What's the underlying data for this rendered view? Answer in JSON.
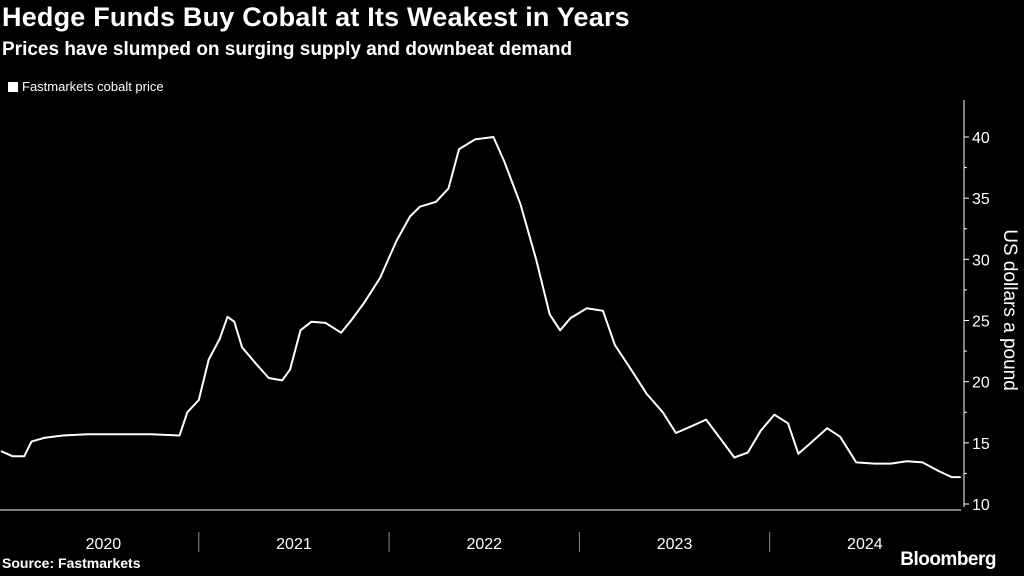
{
  "chart_data": {
    "type": "line",
    "title": "Hedge Funds Buy Cobalt at Its Weakest in Years",
    "subtitle": "Prices have slumped on surging supply and downbeat demand",
    "ylabel": "US dollars a pound",
    "xlabel": "",
    "ylim": [
      10,
      42
    ],
    "yticks": [
      10,
      15,
      20,
      25,
      30,
      35,
      40
    ],
    "xlim": [
      "2020-01-01",
      "2024-12-31"
    ],
    "year_labels": [
      "2020",
      "2021",
      "2022",
      "2023",
      "2024"
    ],
    "legend": "top-left",
    "grid": false,
    "series": [
      {
        "name": "Fastmarkets cobalt price",
        "color": "#ffffff",
        "points": [
          [
            "2019-12-20",
            14.3
          ],
          [
            "2020-01-10",
            13.9
          ],
          [
            "2020-02-01",
            13.9
          ],
          [
            "2020-02-15",
            15.1
          ],
          [
            "2020-03-10",
            15.4
          ],
          [
            "2020-04-15",
            15.6
          ],
          [
            "2020-06-01",
            15.7
          ],
          [
            "2020-08-01",
            15.7
          ],
          [
            "2020-10-01",
            15.7
          ],
          [
            "2020-11-25",
            15.6
          ],
          [
            "2020-12-10",
            17.5
          ],
          [
            "2021-01-01",
            18.5
          ],
          [
            "2021-01-20",
            21.8
          ],
          [
            "2021-02-10",
            23.5
          ],
          [
            "2021-02-25",
            25.3
          ],
          [
            "2021-03-10",
            24.9
          ],
          [
            "2021-03-25",
            22.8
          ],
          [
            "2021-04-20",
            21.5
          ],
          [
            "2021-05-15",
            20.3
          ],
          [
            "2021-06-10",
            20.1
          ],
          [
            "2021-06-25",
            21.0
          ],
          [
            "2021-07-15",
            24.2
          ],
          [
            "2021-08-05",
            24.9
          ],
          [
            "2021-09-01",
            24.8
          ],
          [
            "2021-10-01",
            24.0
          ],
          [
            "2021-10-20",
            25.0
          ],
          [
            "2021-11-15",
            26.5
          ],
          [
            "2021-12-15",
            28.5
          ],
          [
            "2022-01-15",
            31.5
          ],
          [
            "2022-02-10",
            33.5
          ],
          [
            "2022-03-01",
            34.3
          ],
          [
            "2022-04-01",
            34.7
          ],
          [
            "2022-04-25",
            35.8
          ],
          [
            "2022-05-15",
            39.0
          ],
          [
            "2022-06-15",
            39.8
          ],
          [
            "2022-07-20",
            40.0
          ],
          [
            "2022-08-10",
            38.0
          ],
          [
            "2022-09-10",
            34.5
          ],
          [
            "2022-10-10",
            30.0
          ],
          [
            "2022-11-05",
            25.5
          ],
          [
            "2022-11-25",
            24.2
          ],
          [
            "2022-12-15",
            25.2
          ],
          [
            "2023-01-15",
            26.0
          ],
          [
            "2023-02-15",
            25.8
          ],
          [
            "2023-03-10",
            23.0
          ],
          [
            "2023-04-10",
            21.0
          ],
          [
            "2023-05-10",
            19.0
          ],
          [
            "2023-06-10",
            17.5
          ],
          [
            "2023-07-05",
            15.8
          ],
          [
            "2023-08-01",
            16.3
          ],
          [
            "2023-09-01",
            16.9
          ],
          [
            "2023-10-01",
            15.2
          ],
          [
            "2023-10-25",
            13.8
          ],
          [
            "2023-11-20",
            14.2
          ],
          [
            "2023-12-15",
            16.0
          ],
          [
            "2024-01-10",
            17.3
          ],
          [
            "2024-02-05",
            16.6
          ],
          [
            "2024-02-25",
            14.1
          ],
          [
            "2024-03-20",
            15.0
          ],
          [
            "2024-04-20",
            16.2
          ],
          [
            "2024-05-15",
            15.5
          ],
          [
            "2024-06-15",
            13.4
          ],
          [
            "2024-07-20",
            13.3
          ],
          [
            "2024-08-20",
            13.3
          ],
          [
            "2024-09-20",
            13.5
          ],
          [
            "2024-10-20",
            13.4
          ],
          [
            "2024-11-20",
            12.7
          ],
          [
            "2024-12-15",
            12.2
          ],
          [
            "2024-12-31",
            12.2
          ]
        ]
      }
    ]
  },
  "legend": {
    "label": "Fastmarkets cobalt price"
  },
  "footer": {
    "source": "Source: Fastmarkets",
    "brand": "Bloomberg"
  }
}
